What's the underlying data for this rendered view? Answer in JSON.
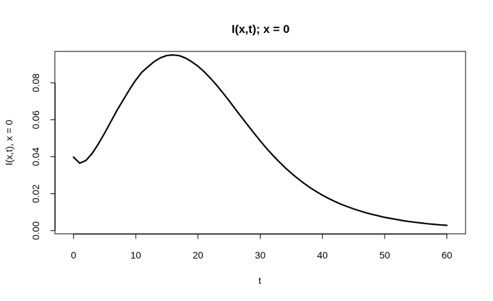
{
  "chart_data": {
    "type": "line",
    "title": "I(x,t); x = 0",
    "xlabel": "t",
    "ylabel": "I(x,t), x = 0",
    "xlim": [
      -3,
      63
    ],
    "ylim": [
      -0.0017,
      0.097
    ],
    "x_ticks": [
      0,
      10,
      20,
      30,
      40,
      50,
      60
    ],
    "x_tick_labels": [
      "0",
      "10",
      "20",
      "30",
      "40",
      "50",
      "60"
    ],
    "y_ticks": [
      0.0,
      0.02,
      0.04,
      0.06,
      0.08
    ],
    "y_tick_labels": [
      "0.00",
      "0.02",
      "0.04",
      "0.06",
      "0.08"
    ],
    "grid": false,
    "box": true,
    "line_color": "#000000",
    "series": [
      {
        "x": [
          0,
          1,
          2,
          3,
          4,
          5,
          6,
          7,
          8,
          9,
          10,
          11,
          12,
          13,
          14,
          15,
          16,
          17,
          18,
          19,
          20,
          21,
          22,
          23,
          24,
          25,
          26,
          27,
          28,
          29,
          30,
          31,
          32,
          33,
          34,
          35,
          36,
          37,
          38,
          39,
          40,
          41,
          42,
          43,
          44,
          45,
          46,
          47,
          48,
          49,
          50,
          51,
          52,
          53,
          54,
          55,
          56,
          57,
          58,
          59,
          60
        ],
        "y": [
          0.0398,
          0.0365,
          0.038,
          0.0418,
          0.047,
          0.0528,
          0.059,
          0.0652,
          0.0708,
          0.0764,
          0.0815,
          0.0858,
          0.0888,
          0.0916,
          0.0936,
          0.0948,
          0.0951,
          0.0947,
          0.0934,
          0.0914,
          0.089,
          0.086,
          0.0825,
          0.0787,
          0.0746,
          0.0703,
          0.0658,
          0.0614,
          0.0571,
          0.0528,
          0.0486,
          0.0446,
          0.0409,
          0.0374,
          0.0341,
          0.0311,
          0.0283,
          0.0257,
          0.0233,
          0.0212,
          0.0192,
          0.0174,
          0.0158,
          0.0143,
          0.013,
          0.0118,
          0.0107,
          0.0097,
          0.0088,
          0.008,
          0.0072,
          0.0066,
          0.006,
          0.0054,
          0.0049,
          0.0045,
          0.0041,
          0.0037,
          0.0034,
          0.0031,
          0.0029
        ]
      }
    ]
  }
}
